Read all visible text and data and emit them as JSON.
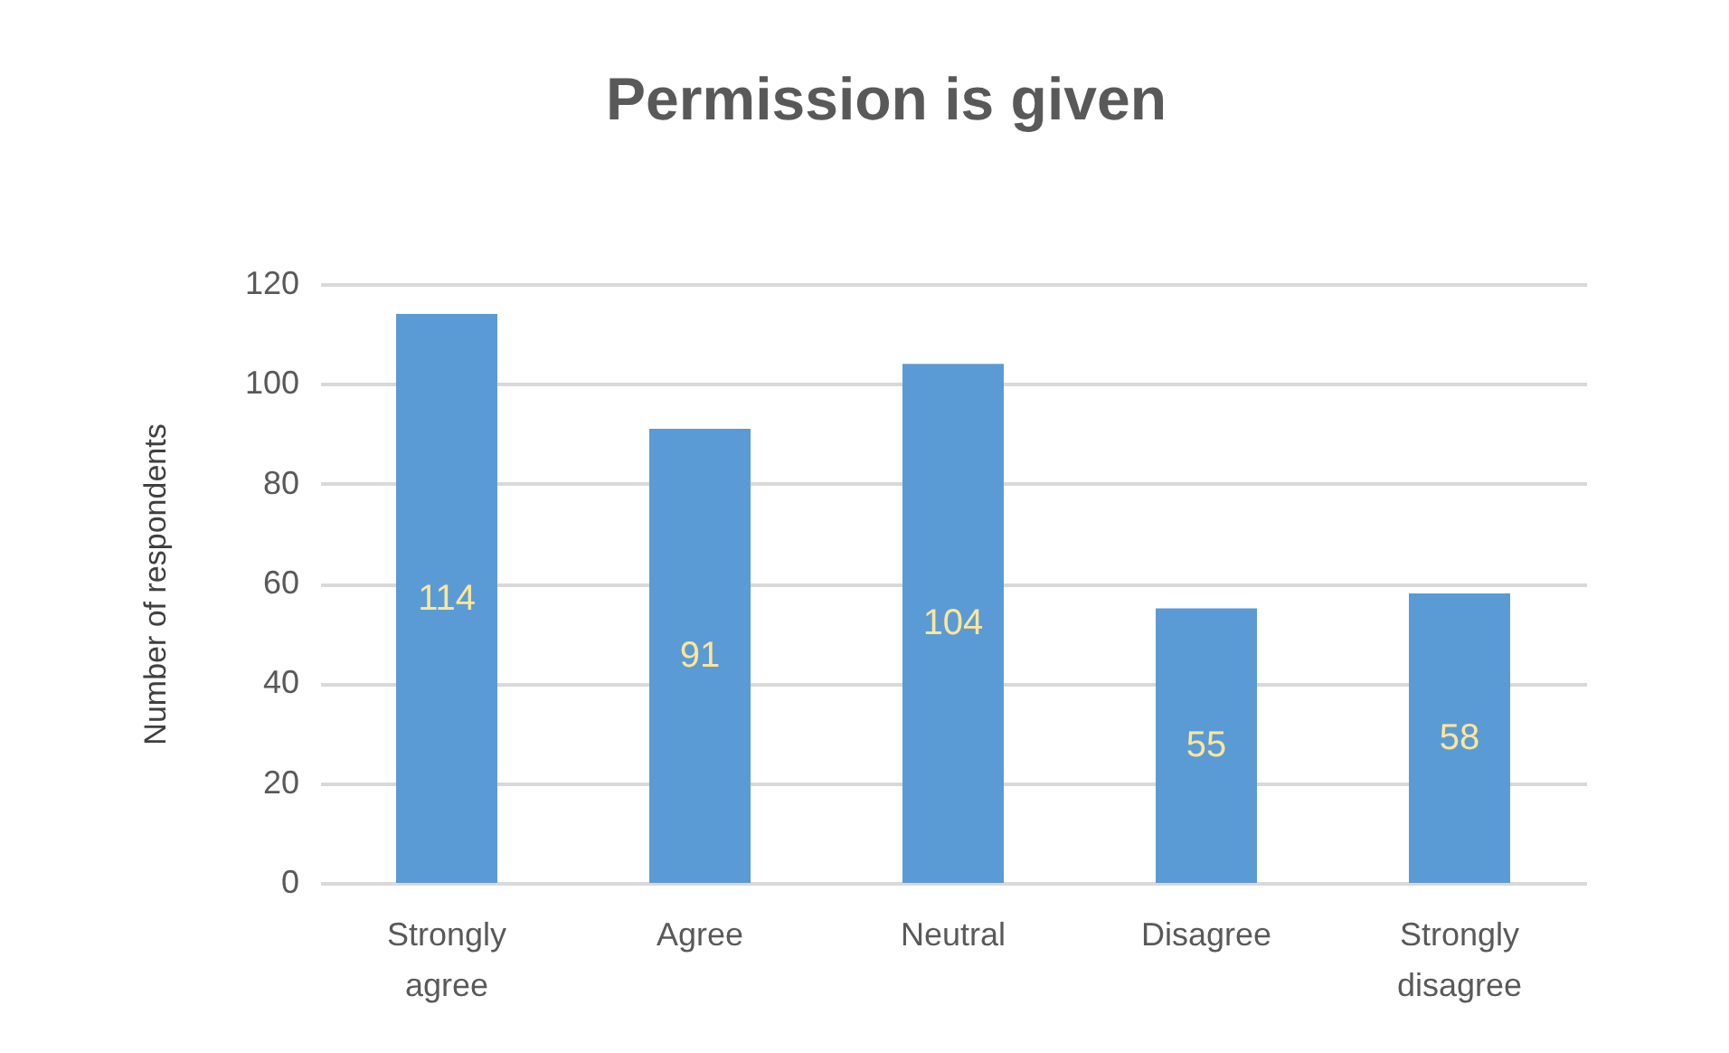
{
  "chart_data": {
    "type": "bar",
    "title": "Permission is given",
    "ylabel": "Number of respondents",
    "categories": [
      "Strongly agree",
      "Agree",
      "Neutral",
      "Disagree",
      "Strongly disagree"
    ],
    "values": [
      114,
      91,
      104,
      55,
      58
    ],
    "color": "#5b9bd5",
    "ylim": [
      0,
      120
    ],
    "yticks": [
      0,
      20,
      40,
      60,
      80,
      100,
      120
    ],
    "grid": "y",
    "data_labels": true
  }
}
